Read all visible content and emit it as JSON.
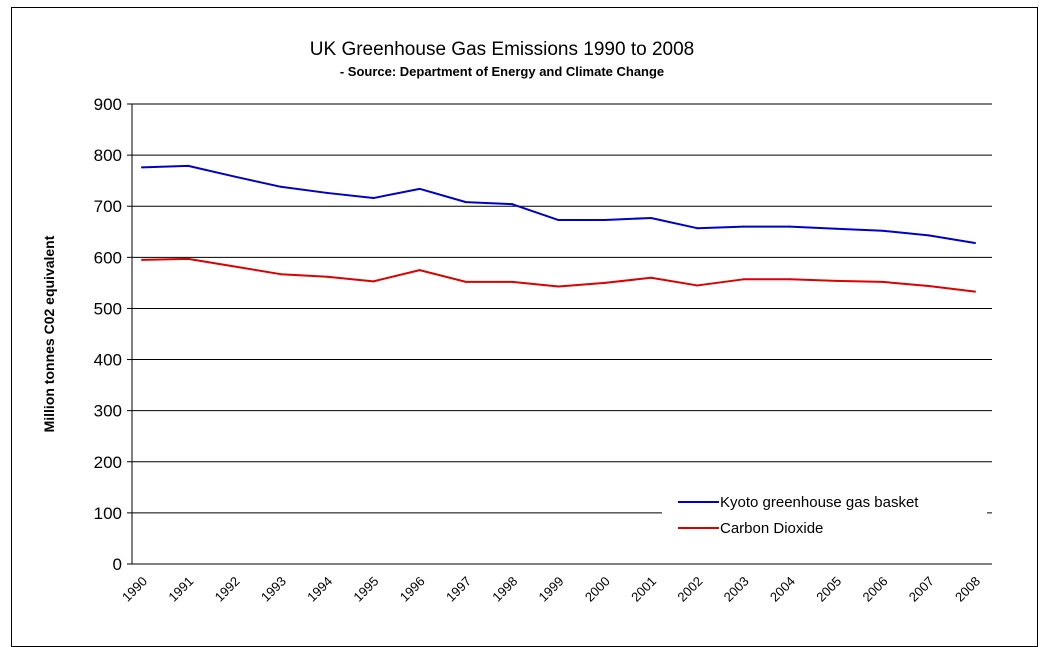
{
  "chart_data": {
    "type": "line",
    "title": "UK Greenhouse Gas Emissions 1990 to 2008",
    "subtitle": "- Source: Department of Energy and Climate Change",
    "xlabel": "",
    "ylabel": "Million tonnes C02 equivalent",
    "ylim": [
      0,
      900
    ],
    "yticks": [
      "0",
      "100",
      "200",
      "300",
      "400",
      "500",
      "600",
      "700",
      "800",
      "900"
    ],
    "categories": [
      "1990",
      "1991",
      "1992",
      "1993",
      "1994",
      "1995",
      "1996",
      "1997",
      "1998",
      "1999",
      "2000",
      "2001",
      "2002",
      "2003",
      "2004",
      "2005",
      "2006",
      "2007",
      "2008"
    ],
    "grid": true,
    "legend_position": "bottom-right",
    "series": [
      {
        "name": "Kyoto greenhouse gas basket",
        "color": "#0000cc",
        "values": [
          776,
          779,
          758,
          738,
          726,
          716,
          734,
          708,
          704,
          673,
          673,
          677,
          657,
          660,
          660,
          656,
          652,
          643,
          628
        ]
      },
      {
        "name": "Carbon Dioxide",
        "color": "#dd0000",
        "values": [
          595,
          597,
          582,
          567,
          562,
          553,
          575,
          552,
          552,
          543,
          550,
          560,
          545,
          557,
          557,
          554,
          552,
          544,
          533
        ]
      }
    ]
  }
}
